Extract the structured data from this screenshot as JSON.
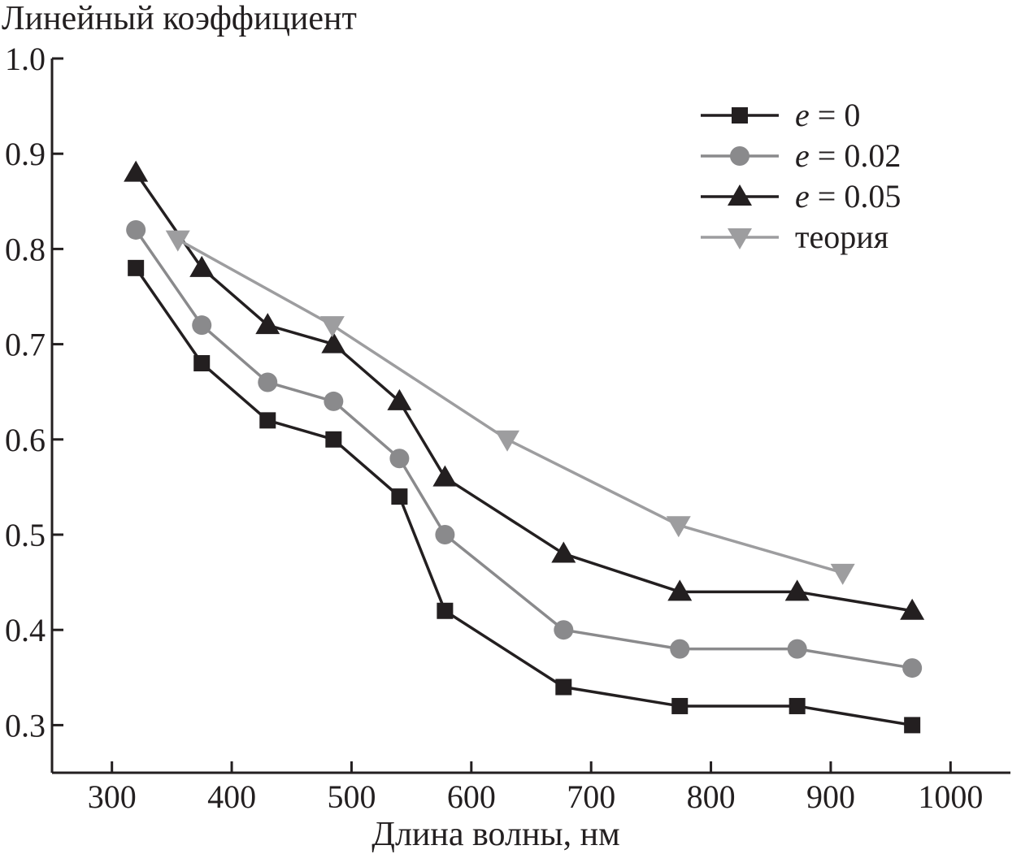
{
  "chart_data": {
    "type": "line",
    "ylabel": "Линейный коэффициент",
    "xlabel": "Длина волны, нм",
    "xlim": [
      250,
      1050
    ],
    "ylim": [
      0.25,
      1.0
    ],
    "xticks": [
      300,
      400,
      500,
      600,
      700,
      800,
      900,
      1000
    ],
    "yticks": [
      1.0,
      0.9,
      0.8,
      0.7,
      0.6,
      0.5,
      0.4,
      0.3
    ],
    "ytick_labels": [
      "1.0",
      "0.9",
      "0.8",
      "0.7",
      "0.6",
      "0.5",
      "0.4",
      "0.3"
    ],
    "xtick_labels": [
      "300",
      "400",
      "500",
      "600",
      "700",
      "800",
      "900",
      "1000"
    ],
    "legend_position": "top-right",
    "grid": false,
    "series": [
      {
        "name": "e = 0",
        "legend_var": "e",
        "legend_rest": " = 0",
        "marker": "square",
        "color": "#231f20",
        "x": [
          320,
          375,
          430,
          485,
          540,
          578,
          677,
          774,
          872,
          968
        ],
        "y": [
          0.78,
          0.68,
          0.62,
          0.6,
          0.54,
          0.42,
          0.34,
          0.32,
          0.32,
          0.3
        ]
      },
      {
        "name": "e = 0.02",
        "legend_var": "e",
        "legend_rest": " = 0.02",
        "marker": "circle",
        "color": "#8a8a8c",
        "x": [
          320,
          375,
          430,
          485,
          540,
          578,
          677,
          774,
          872,
          968
        ],
        "y": [
          0.82,
          0.72,
          0.66,
          0.64,
          0.58,
          0.5,
          0.4,
          0.38,
          0.38,
          0.36
        ]
      },
      {
        "name": "e = 0.05",
        "legend_var": "e",
        "legend_rest": " = 0.05",
        "marker": "triangle-up",
        "color": "#231f20",
        "x": [
          320,
          375,
          430,
          485,
          540,
          578,
          677,
          774,
          872,
          968
        ],
        "y": [
          0.88,
          0.78,
          0.72,
          0.7,
          0.64,
          0.56,
          0.48,
          0.44,
          0.44,
          0.42
        ]
      },
      {
        "name": "теория",
        "legend_var": "",
        "legend_rest": "теория",
        "marker": "triangle-down",
        "color": "#9d9d9f",
        "x": [
          355,
          484,
          630,
          773,
          910
        ],
        "y": [
          0.81,
          0.72,
          0.6,
          0.51,
          0.46
        ]
      }
    ]
  }
}
